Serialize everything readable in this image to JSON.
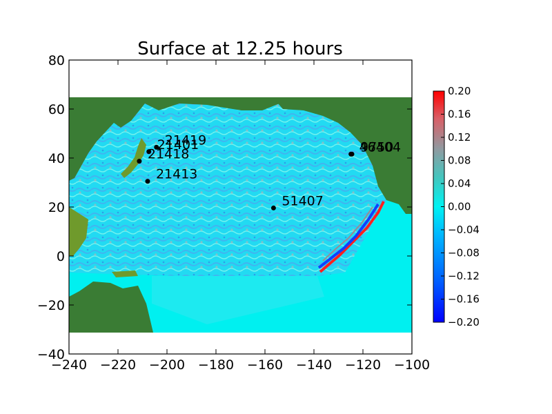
{
  "chart_data": {
    "type": "heatmap",
    "title": "Surface at 12.25 hours",
    "xlabel": "",
    "ylabel": "",
    "xlim": [
      -240,
      -100
    ],
    "ylim": [
      -40,
      80
    ],
    "xticks": [
      -240,
      -220,
      -200,
      -180,
      -160,
      -140,
      -120,
      -100
    ],
    "yticks": [
      -40,
      -20,
      0,
      20,
      40,
      60,
      80
    ],
    "xtick_labels": [
      "−240",
      "−220",
      "−200",
      "−180",
      "−160",
      "−140",
      "−120",
      "−100"
    ],
    "ytick_labels": [
      "−40",
      "−20",
      "0",
      "20",
      "40",
      "60",
      "80"
    ],
    "data_extent": {
      "lon": [
        -240,
        -100
      ],
      "lat": [
        -31,
        65
      ]
    },
    "colorbar": {
      "range": [
        -0.2,
        0.2
      ],
      "ticks": [
        -0.2,
        -0.16,
        -0.12,
        -0.08,
        -0.04,
        0.0,
        0.04,
        0.08,
        0.12,
        0.16,
        0.2
      ],
      "tick_labels": [
        "−0.20",
        "−0.16",
        "−0.12",
        "−0.08",
        "−0.04",
        "0.00",
        "0.04",
        "0.08",
        "0.12",
        "0.16",
        "0.20"
      ],
      "colors": [
        "#0000ff",
        "#00e8ff",
        "#ff0000"
      ]
    },
    "gauges": [
      {
        "label": "21419",
        "lon": 155.7,
        "lat": 44.4
      },
      {
        "label": "21401",
        "lon": 152.6,
        "lat": 42.6
      },
      {
        "label": "21418",
        "lon": 148.7,
        "lat": 38.7
      },
      {
        "label": "21413",
        "lon": 152.1,
        "lat": 30.5
      },
      {
        "label": "51407",
        "lon": -156.5,
        "lat": 19.6
      },
      {
        "label": "46404",
        "lon": -124.9,
        "lat": 41.6
      },
      {
        "label": "9750",
        "lon": -124.5,
        "lat": 41.6
      }
    ],
    "land_color": "#3a7c34",
    "shallow_color": "#8fb22a",
    "grid": false
  }
}
